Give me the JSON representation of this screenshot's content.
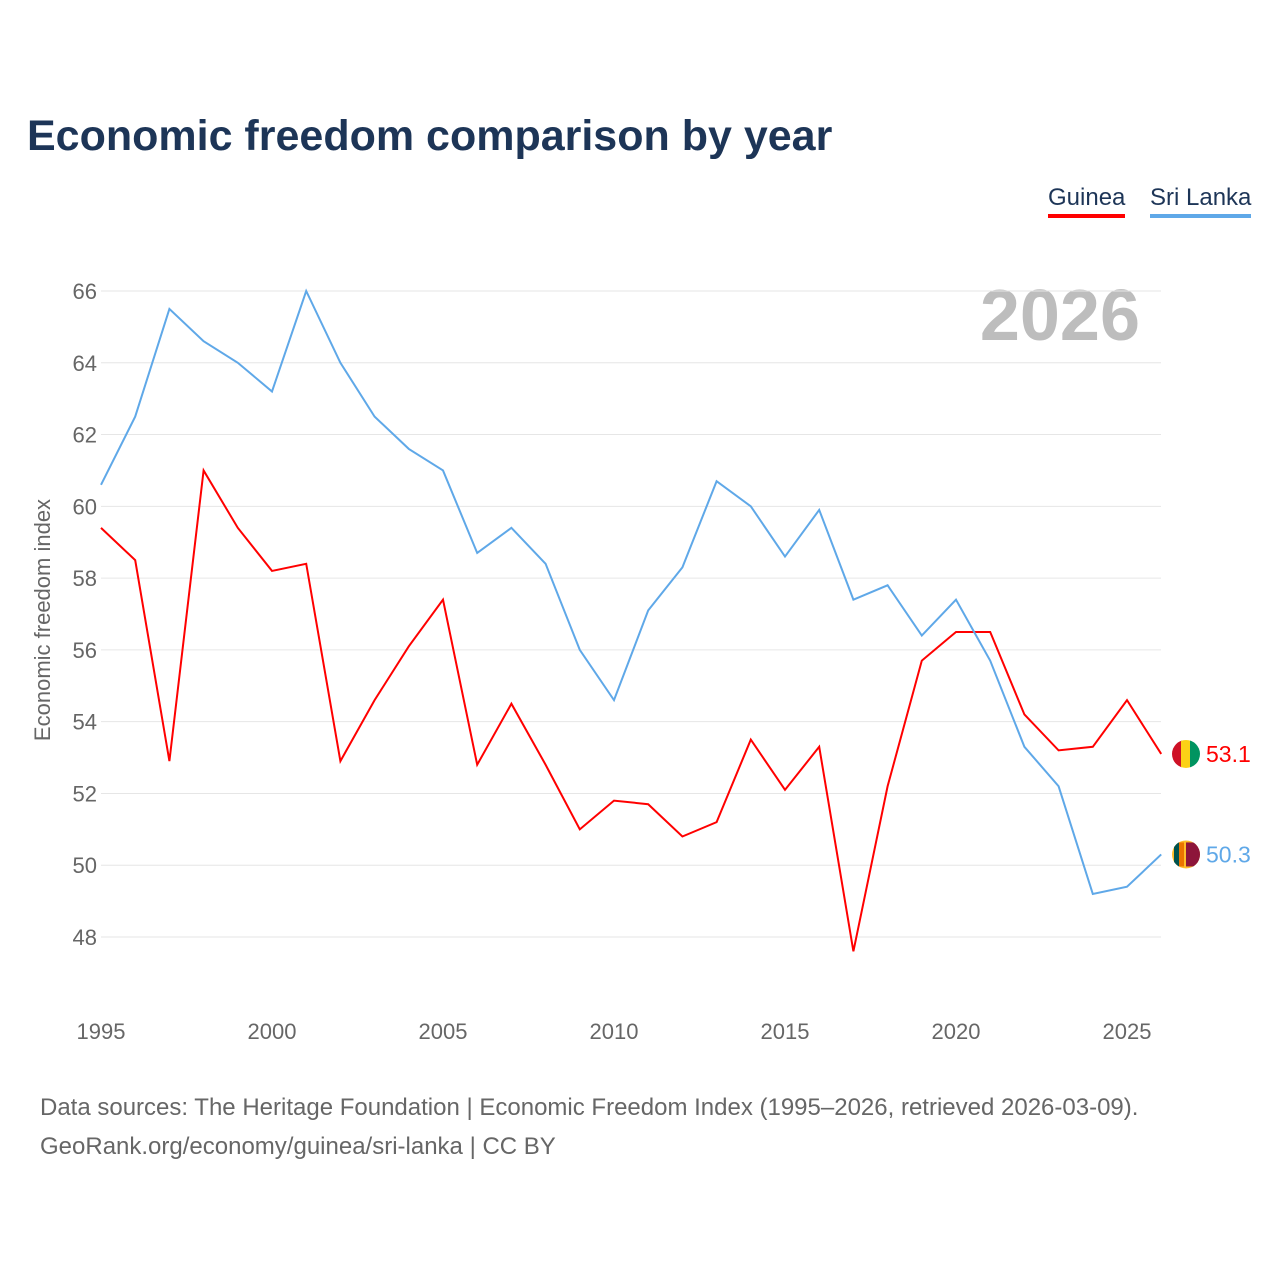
{
  "title": "Economic freedom comparison by year",
  "legend": [
    "Guinea",
    "Sri Lanka"
  ],
  "year_badge": "2026",
  "source_line1": "Data sources: The Heritage Foundation | Economic Freedom Index (1995–2026, retrieved 2026-03-09).",
  "source_line2": "GeoRank.org/economy/guinea/sri-lanka | CC BY",
  "chart_data": {
    "type": "line",
    "title": "Economic freedom comparison by year",
    "xlabel": "",
    "ylabel": "Economic freedom index",
    "xlim": [
      1995,
      2026
    ],
    "ylim": [
      46.5,
      67
    ],
    "xticks": [
      1995,
      2000,
      2005,
      2010,
      2015,
      2020,
      2025
    ],
    "yticks": [
      48,
      50,
      52,
      54,
      56,
      58,
      60,
      62,
      64,
      66
    ],
    "grid": true,
    "legend_position": "top-right",
    "x": [
      1995,
      1996,
      1997,
      1998,
      1999,
      2000,
      2001,
      2002,
      2003,
      2004,
      2005,
      2006,
      2007,
      2008,
      2009,
      2010,
      2011,
      2012,
      2013,
      2014,
      2015,
      2016,
      2017,
      2018,
      2019,
      2020,
      2021,
      2022,
      2023,
      2024,
      2025,
      2026
    ],
    "series": [
      {
        "name": "Guinea",
        "color": "#ff0000",
        "end_label": "53.1",
        "values": [
          59.4,
          58.5,
          52.9,
          61.0,
          59.4,
          58.2,
          58.4,
          52.9,
          54.6,
          56.1,
          57.4,
          52.8,
          54.5,
          52.8,
          51.0,
          51.8,
          51.7,
          50.8,
          51.2,
          53.5,
          52.1,
          53.3,
          47.6,
          52.2,
          55.7,
          56.5,
          56.5,
          54.2,
          53.2,
          53.3,
          54.6,
          53.1
        ]
      },
      {
        "name": "Sri Lanka",
        "color": "#5fa8e8",
        "end_label": "50.3",
        "values": [
          60.6,
          62.5,
          65.5,
          64.6,
          64.0,
          63.2,
          66.0,
          64.0,
          62.5,
          61.6,
          61.0,
          58.7,
          59.4,
          58.4,
          56.0,
          54.6,
          57.1,
          58.3,
          60.7,
          60.0,
          58.6,
          59.9,
          57.4,
          57.8,
          56.4,
          57.4,
          55.7,
          53.3,
          52.2,
          49.2,
          49.4,
          50.3
        ]
      }
    ]
  }
}
